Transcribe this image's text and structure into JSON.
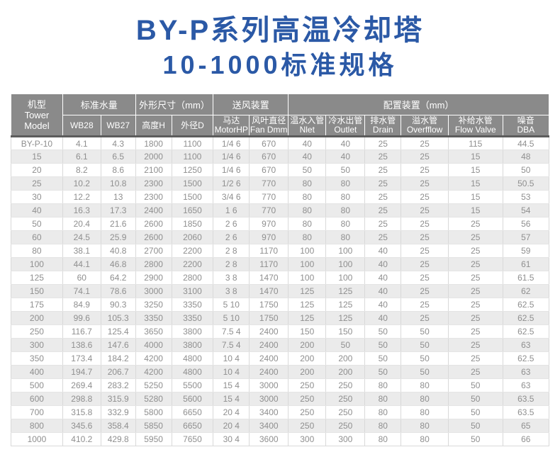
{
  "title": {
    "line1": "BY-P系列高温冷却塔",
    "line2": "10-1000标准规格"
  },
  "colors": {
    "title_blue": "#2b59a6",
    "header_gray": "#8a8a8a",
    "header_divider_dark": "#5c5c5c",
    "row_stripe": "#ebebeb",
    "body_text": "#8f8f8f"
  },
  "table": {
    "col_widths": [
      "9.6%",
      "7.1%",
      "6.45%",
      "6.7%",
      "7.75%",
      "6.7%",
      "7.25%",
      "7.0%",
      "7.25%",
      "6.7%",
      "8.8%",
      "10.1%",
      "8.6%"
    ],
    "header": {
      "model_cn": "机型",
      "model_en1": "Tower",
      "model_en2": "Model",
      "group_water": "标准水量",
      "group_dims": "外形尺寸（mm）",
      "group_fan": "送风装置",
      "group_config": "配置装置（mm）",
      "subcols": [
        {
          "l1": "WB28",
          "l2": ""
        },
        {
          "l1": "WB27",
          "l2": ""
        },
        {
          "l1": "高度H",
          "l2": ""
        },
        {
          "l1": "外径D",
          "l2": ""
        },
        {
          "l1": "马达",
          "l2": "MotorHP"
        },
        {
          "l1": "风叶直径",
          "l2": "Fan Dmm"
        },
        {
          "l1": "温水入管",
          "l2": "Nlet"
        },
        {
          "l1": "冷水出管",
          "l2": "Outlet"
        },
        {
          "l1": "排水管",
          "l2": "Drain"
        },
        {
          "l1": "溢水管",
          "l2": "Overfflow"
        },
        {
          "l1": "补给水管",
          "l2": "Flow Valve"
        },
        {
          "l1": "噪音",
          "l2": "DBA"
        }
      ]
    },
    "rows": [
      [
        "BY-P-10",
        "4.1",
        "4.3",
        "1800",
        "1100",
        "1/4 6",
        "670",
        "40",
        "40",
        "25",
        "25",
        "115",
        "44.5"
      ],
      [
        "15",
        "6.1",
        "6.5",
        "2000",
        "1100",
        "1/4 6",
        "670",
        "40",
        "40",
        "25",
        "25",
        "15",
        "48"
      ],
      [
        "20",
        "8.2",
        "8.6",
        "2100",
        "1250",
        "1/4 6",
        "670",
        "50",
        "50",
        "25",
        "25",
        "15",
        "50"
      ],
      [
        "25",
        "10.2",
        "10.8",
        "2300",
        "1500",
        "1/2 6",
        "770",
        "80",
        "80",
        "25",
        "25",
        "15",
        "50.5"
      ],
      [
        "30",
        "12.2",
        "13",
        "2300",
        "1500",
        "3/4 6",
        "770",
        "80",
        "80",
        "25",
        "25",
        "15",
        "53"
      ],
      [
        "40",
        "16.3",
        "17.3",
        "2400",
        "1650",
        "1 6",
        "770",
        "80",
        "80",
        "25",
        "25",
        "15",
        "54"
      ],
      [
        "50",
        "20.4",
        "21.6",
        "2600",
        "1850",
        "2 6",
        "970",
        "80",
        "80",
        "25",
        "25",
        "25",
        "56"
      ],
      [
        "60",
        "24.5",
        "25.9",
        "2600",
        "2060",
        "2 6",
        "970",
        "80",
        "80",
        "25",
        "25",
        "25",
        "57"
      ],
      [
        "80",
        "38.1",
        "40.8",
        "2700",
        "2200",
        "2 8",
        "1170",
        "100",
        "100",
        "40",
        "25",
        "25",
        "59"
      ],
      [
        "100",
        "44.1",
        "46.8",
        "2800",
        "2200",
        "2 8",
        "1170",
        "100",
        "100",
        "40",
        "25",
        "25",
        "61"
      ],
      [
        "125",
        "60",
        "64.2",
        "2900",
        "2800",
        "3 8",
        "1470",
        "100",
        "100",
        "40",
        "25",
        "25",
        "61.5"
      ],
      [
        "150",
        "74.1",
        "78.6",
        "3000",
        "3100",
        "3 8",
        "1470",
        "125",
        "125",
        "40",
        "25",
        "25",
        "62"
      ],
      [
        "175",
        "84.9",
        "90.3",
        "3250",
        "3350",
        "5 10",
        "1750",
        "125",
        "125",
        "40",
        "25",
        "25",
        "62.5"
      ],
      [
        "200",
        "99.6",
        "105.3",
        "3350",
        "3350",
        "5 10",
        "1750",
        "125",
        "125",
        "40",
        "25",
        "25",
        "62.5"
      ],
      [
        "250",
        "116.7",
        "125.4",
        "3650",
        "3800",
        "7.5 4",
        "2400",
        "150",
        "150",
        "50",
        "50",
        "25",
        "62.5"
      ],
      [
        "300",
        "138.6",
        "147.6",
        "4000",
        "3800",
        "7.5 4",
        "2400",
        "200",
        "50",
        "50",
        "50",
        "25",
        "63"
      ],
      [
        "350",
        "173.4",
        "184.2",
        "4200",
        "4800",
        "10 4",
        "2400",
        "200",
        "200",
        "50",
        "50",
        "25",
        "62.5"
      ],
      [
        "400",
        "194.7",
        "206.7",
        "4200",
        "4800",
        "10 4",
        "2400",
        "200",
        "200",
        "50",
        "50",
        "25",
        "63"
      ],
      [
        "500",
        "269.4",
        "283.2",
        "5250",
        "5500",
        "15 4",
        "3000",
        "250",
        "250",
        "80",
        "80",
        "50",
        "63"
      ],
      [
        "600",
        "298.8",
        "315.9",
        "5280",
        "5600",
        "15 4",
        "3000",
        "250",
        "250",
        "80",
        "80",
        "50",
        "63.5"
      ],
      [
        "700",
        "315.8",
        "332.9",
        "5800",
        "6650",
        "20 4",
        "3400",
        "250",
        "250",
        "80",
        "80",
        "50",
        "63.5"
      ],
      [
        "800",
        "345.6",
        "358.4",
        "5850",
        "6650",
        "20 4",
        "3400",
        "250",
        "250",
        "80",
        "80",
        "50",
        "65"
      ],
      [
        "1000",
        "410.2",
        "429.8",
        "5950",
        "7650",
        "30 4",
        "3600",
        "300",
        "300",
        "80",
        "80",
        "50",
        "66"
      ]
    ]
  }
}
